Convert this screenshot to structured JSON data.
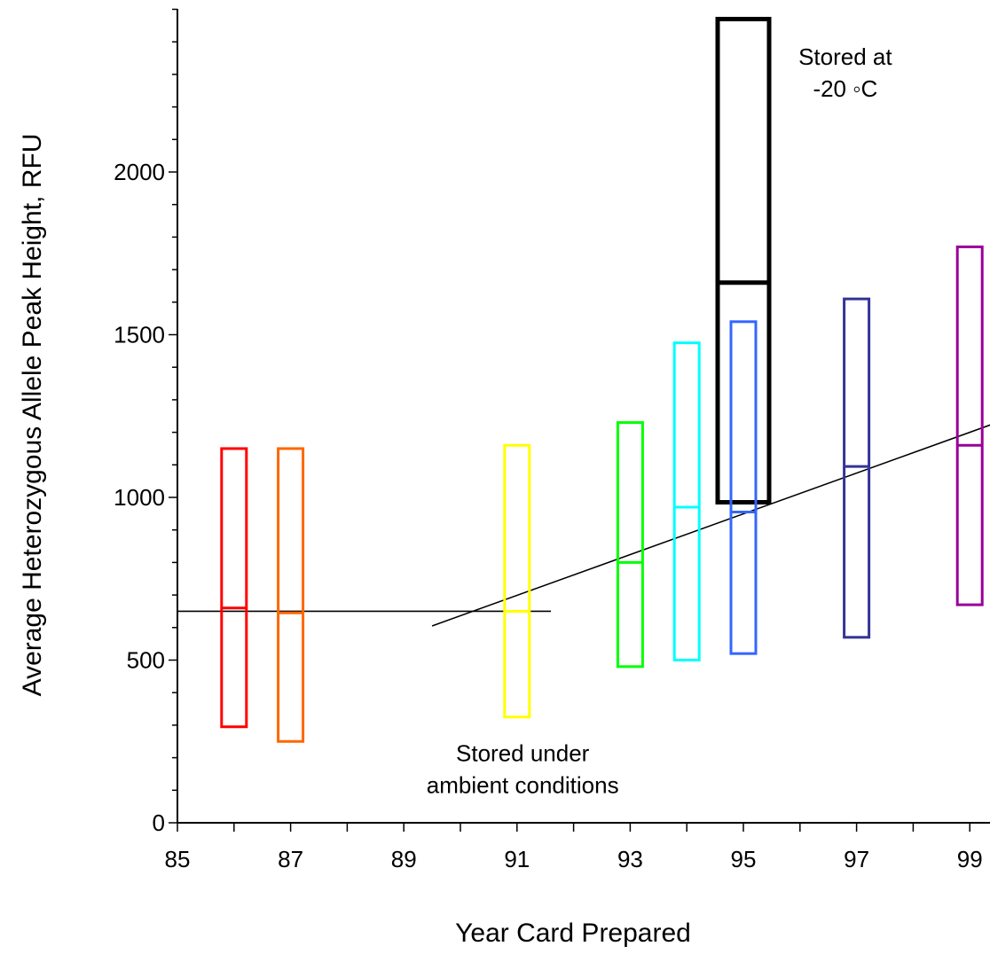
{
  "chart_data": {
    "type": "box",
    "xlabel": "Year Card Prepared",
    "ylabel": "Average Heterozygous Allele Peak Height, RFU",
    "xlim": [
      85,
      99.4
    ],
    "ylim": [
      0,
      2500
    ],
    "x_ticks": [
      85,
      87,
      89,
      91,
      93,
      95,
      97,
      99
    ],
    "y_ticks": [
      0,
      500,
      1000,
      1500,
      2000
    ],
    "x_minor_step": 1,
    "y_minor_step": 100,
    "grid": false,
    "boxes": [
      {
        "x": 86.0,
        "low": 295,
        "mid": 660,
        "high": 1150,
        "color": "#ff0000"
      },
      {
        "x": 87.0,
        "low": 250,
        "mid": 645,
        "high": 1150,
        "color": "#ff6600"
      },
      {
        "x": 91.0,
        "low": 325,
        "mid": 650,
        "high": 1160,
        "color": "#ffff00"
      },
      {
        "x": 93.0,
        "low": 480,
        "mid": 800,
        "high": 1230,
        "color": "#00ff00"
      },
      {
        "x": 94.0,
        "low": 500,
        "mid": 970,
        "high": 1475,
        "color": "#00ffff"
      },
      {
        "x": 95.0,
        "low": 985,
        "mid": 1660,
        "high": 2470,
        "color": "#000000",
        "bold": true
      },
      {
        "x": 95.0,
        "low": 520,
        "mid": 955,
        "high": 1540,
        "color": "#3366ff"
      },
      {
        "x": 97.0,
        "low": 570,
        "mid": 1095,
        "high": 1610,
        "color": "#333399"
      },
      {
        "x": 99.0,
        "low": 670,
        "mid": 1160,
        "high": 1770,
        "color": "#990099"
      }
    ],
    "trend_lines": [
      {
        "x": [
          85,
          91.6
        ],
        "y": [
          650,
          650
        ]
      },
      {
        "x": [
          89.5,
          99.4
        ],
        "y": [
          605,
          1225
        ]
      }
    ],
    "annotations": [
      {
        "lines": [
          "Stored at",
          "-20 ◦C"
        ],
        "x": 96.8,
        "y": 2330
      },
      {
        "lines": [
          "Stored under",
          "ambient conditions"
        ],
        "x": 91.1,
        "y": 190
      }
    ]
  }
}
